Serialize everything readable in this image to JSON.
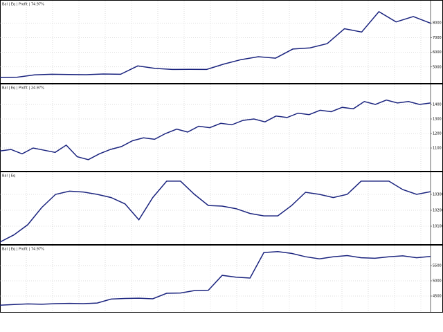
{
  "chart_data": [
    {
      "type": "line",
      "title": "Bal | Eq | Profit | 74.97%",
      "color": "#1a237e",
      "values": [
        4280,
        4300,
        4460,
        4500,
        4480,
        4470,
        4520,
        4500,
        5070,
        4900,
        4830,
        4840,
        4830,
        5200,
        5500,
        5700,
        5600,
        6220,
        6300,
        6590,
        7610,
        7380,
        8770,
        8070,
        8440,
        7980
      ],
      "ylim": [
        4000,
        9000
      ],
      "yticks": [
        5000,
        6000,
        7000,
        8000
      ],
      "grid": true
    },
    {
      "type": "line",
      "title": "Bal | Eq | Profit | 24.97%",
      "color": "#1a237e",
      "values": [
        1080,
        1090,
        1060,
        1100,
        1085,
        1070,
        1120,
        1040,
        1020,
        1060,
        1090,
        1110,
        1150,
        1170,
        1160,
        1200,
        1230,
        1210,
        1250,
        1240,
        1270,
        1260,
        1290,
        1300,
        1280,
        1320,
        1310,
        1340,
        1330,
        1360,
        1350,
        1380,
        1370,
        1420,
        1400,
        1430,
        1410,
        1420,
        1400,
        1410
      ],
      "ylim": [
        1000,
        1500
      ],
      "yticks": [
        1100,
        1200,
        1300,
        1400
      ],
      "grid": true
    },
    {
      "type": "line",
      "title": "Bal | Eq",
      "color": "#1a237e",
      "values": [
        10000,
        10045,
        10109,
        10217,
        10300,
        10320,
        10315,
        10300,
        10280,
        10240,
        10140,
        10280,
        10383,
        10383,
        10300,
        10230,
        10226,
        10210,
        10180,
        10165,
        10165,
        10230,
        10313,
        10300,
        10280,
        10300,
        10383,
        10383,
        10383,
        10330,
        10300,
        10317
      ],
      "ylim": [
        10000,
        10400
      ],
      "yticks": [
        10100,
        10200,
        10300
      ],
      "grid": true
    },
    {
      "type": "line",
      "title": "Bal | Eq | Profit | 74.97%",
      "color": "#1a237e",
      "values": [
        4200,
        4220,
        4240,
        4230,
        4250,
        4260,
        4250,
        4270,
        4400,
        4420,
        4430,
        4410,
        4590,
        4600,
        4680,
        4690,
        5180,
        5120,
        5090,
        5930,
        5960,
        5900,
        5790,
        5720,
        5790,
        5830,
        5760,
        5740,
        5790,
        5820,
        5760,
        5800
      ],
      "ylim": [
        4000,
        6000
      ],
      "yticks": [
        4500,
        5000,
        5500
      ],
      "grid": true
    }
  ]
}
